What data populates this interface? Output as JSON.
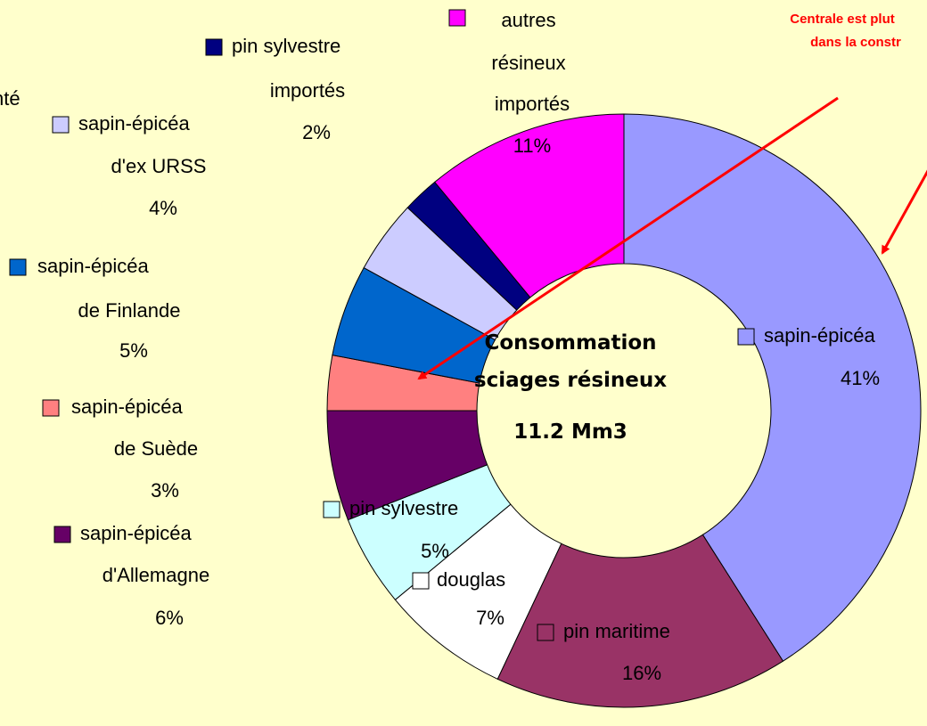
{
  "chart_data": {
    "type": "donut",
    "center_title": "Consommation\nsciages résineux",
    "center_value": "11.2 Mm3",
    "annotations": [
      "nté",
      "Centrale est plut",
      "dans la constr"
    ],
    "categories": [
      "sapin-épicéa",
      "pin maritime",
      "douglas",
      "pin sylvestre",
      "sapin-épicéa\nd'Allemagne",
      "sapin-épicéa\nde Suède",
      "sapin-épicéa\nde Finlande",
      "sapin-épicéa\nd'ex URSS",
      "pin sylvestre\nimportés",
      "autres\nrésineux\nimportés"
    ],
    "values": [
      41,
      16,
      7,
      5,
      6,
      3,
      5,
      4,
      2,
      11
    ],
    "value_labels": [
      "41%",
      "16%",
      "7%",
      "5%",
      "6%",
      "3%",
      "5%",
      "4%",
      "2%",
      "11%"
    ],
    "colors": [
      "#9999ff",
      "#993366",
      "#ffffff",
      "#ccffff",
      "#660066",
      "#ff8080",
      "#0066cc",
      "#ccccff",
      "#000080",
      "#ff00ff"
    ]
  }
}
